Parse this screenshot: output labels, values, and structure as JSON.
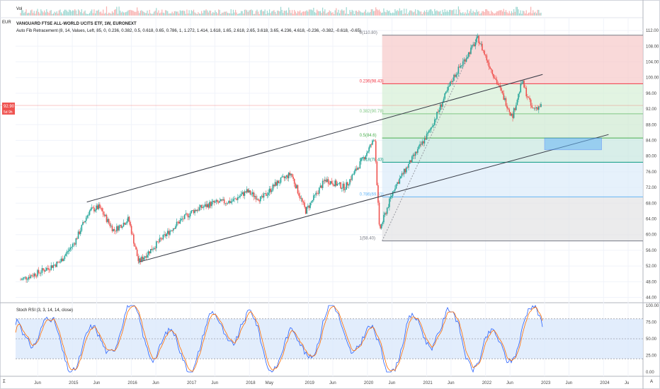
{
  "header": {
    "vol_label": "Vol",
    "currency": "EUR",
    "title": "VANGUARD FTSE ALL-WORLD UCITS ETF, 1W, EURONEXT",
    "indicator": "Auto Fib Retracement (8, 14, Values, Left, 85, 0, 0.236, 0.382, 0.5, 0.618, 0.65, 0.786, 1, 1.272, 1.414, 1.618, 1.65, 2.618, 2.65, 3.618, 3.65, 4.236, 4.618, -0.236, -0.382, -0.618, -0.65)",
    "price_badge": "92.90",
    "price_badge_sub": "5d 9h",
    "stoch_label": "Stoch RSI (3, 3, 14, 14, close)",
    "corner_left": "Σ",
    "corner_right": "A"
  },
  "colors": {
    "up": "#26a69a",
    "down": "#ef5350",
    "trendline": "#363a45",
    "badge": "#ef5350",
    "stoch_k": "#2962ff",
    "stoch_d": "#ff6d00",
    "stoch_band": "#dbe9fb"
  },
  "fib_levels": [
    {
      "ratio": "0",
      "label": "0(110.80)",
      "price": 110.8,
      "color": "#787b86"
    },
    {
      "ratio": "0.236",
      "label": "0.236(98.43)",
      "price": 98.43,
      "color": "#f23645"
    },
    {
      "ratio": "0.382",
      "label": "0.382(90.78)",
      "price": 90.78,
      "color": "#81c784"
    },
    {
      "ratio": "0.5",
      "label": "0.5(84.6)",
      "price": 84.6,
      "color": "#4caf50"
    },
    {
      "ratio": "0.618",
      "label": "0.618(78.43)",
      "price": 78.43,
      "color": "#089981"
    },
    {
      "ratio": "0.786",
      "label": "0.786(69.61)",
      "price": 69.61,
      "color": "#64b5f6"
    },
    {
      "ratio": "1",
      "label": "1(58.40)",
      "price": 58.4,
      "color": "#787b86"
    }
  ],
  "fib_extra_levels": [
    92.9,
    84.6,
    78.43,
    69.61
  ],
  "price_axis": [
    "112.00",
    "108.00",
    "104.00",
    "100.00",
    "96.00",
    "92.00",
    "88.00",
    "84.00",
    "80.00",
    "76.00",
    "72.00",
    "68.00",
    "64.00",
    "60.00",
    "56.00",
    "52.00",
    "48.00",
    "44.00"
  ],
  "stoch_axis": [
    "100.00",
    "75.00",
    "50.00",
    "25.00",
    "0.00"
  ],
  "time_axis": [
    "Jun",
    "2015",
    "Jun",
    "2016",
    "Jun",
    "2017",
    "Jun",
    "2018",
    "May",
    "2019",
    "Jun",
    "2020",
    "Jun",
    "2021",
    "Jun",
    "2022",
    "Jun",
    "2023",
    "Jun",
    "2024",
    "Ju"
  ],
  "chart_data": {
    "type": "line",
    "title": "VANGUARD FTSE ALL-WORLD UCITS ETF, 1W, EURONEXT",
    "xlabel": "",
    "ylabel": "EUR",
    "ylim": [
      44,
      112
    ],
    "x_ticks": [
      "Jun",
      "2015",
      "Jun",
      "2016",
      "Jun",
      "2017",
      "Jun",
      "2018",
      "May",
      "2019",
      "Jun",
      "2020",
      "Jun",
      "2021",
      "Jun",
      "2022",
      "Jun",
      "2023",
      "Jun",
      "2024",
      "Ju"
    ],
    "series": [
      {
        "name": "",
        "x": [
          "2014-02",
          "2014-06",
          "2014-10",
          "2015-01",
          "2015-04",
          "2015-06",
          "2015-09",
          "2015-12",
          "2016-02",
          "2016-06",
          "2016-10",
          "2017-01",
          "2017-05",
          "2017-09",
          "2017-12",
          "2018-03",
          "2018-06",
          "2018-09",
          "2018-12",
          "2019-04",
          "2019-08",
          "2019-12",
          "2020-02",
          "2020-03",
          "2020-06",
          "2020-09",
          "2021-01",
          "2021-06",
          "2021-11",
          "2022-01",
          "2022-06",
          "2022-08",
          "2022-10",
          "2022-12"
        ],
        "values": [
          48.5,
          50.5,
          53,
          58,
          66,
          67,
          61,
          64,
          53,
          58,
          63,
          66,
          68,
          68.5,
          71,
          69,
          73,
          75.5,
          66,
          74,
          72,
          80,
          84.5,
          61,
          72,
          78,
          86,
          100,
          110,
          104,
          90,
          99,
          92,
          92.9
        ]
      }
    ],
    "stoch_rsi": {
      "name": "Stoch RSI (3, 3, 14, 14, close)",
      "ylim": [
        0,
        100
      ],
      "bands": [
        20,
        50,
        80
      ]
    }
  }
}
